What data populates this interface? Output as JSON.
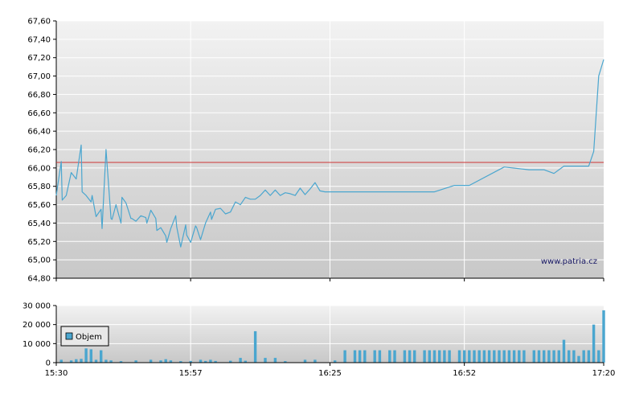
{
  "chart_data": [
    {
      "type": "line",
      "title": "",
      "xlabel": "",
      "ylabel": "",
      "x_tick_labels": [
        "15:30",
        "15:57",
        "16:25",
        "16:52",
        "17:20"
      ],
      "y_tick_labels": [
        "64,80",
        "65,00",
        "65,20",
        "65,40",
        "65,60",
        "65,80",
        "66,00",
        "66,20",
        "66,40",
        "66,60",
        "66,80",
        "67,00",
        "67,20",
        "67,40",
        "67,60"
      ],
      "ylim": [
        64.8,
        67.6
      ],
      "grid": true,
      "reference_line": 66.06,
      "colors": {
        "line": "#4aa6cf",
        "reference": "#cc3333"
      },
      "watermark": "www.patria.cz",
      "series": [
        {
          "x": [
            "15:30",
            "15:31",
            "15:31",
            "15:32",
            "15:33",
            "15:34",
            "15:35",
            "15:35",
            "15:36",
            "15:37",
            "15:37",
            "15:38",
            "15:39",
            "15:39",
            "15:40",
            "15:41",
            "15:41",
            "15:42",
            "15:43",
            "15:43",
            "15:44",
            "15:45",
            "15:45",
            "15:46",
            "15:47",
            "15:48",
            "15:48",
            "15:49",
            "15:50",
            "15:50",
            "15:51",
            "15:52",
            "15:52",
            "15:53",
            "15:54",
            "15:54",
            "15:55",
            "15:56",
            "15:56",
            "15:57",
            "15:58",
            "15:58",
            "15:59",
            "16:00",
            "16:01",
            "16:01",
            "16:02",
            "16:03",
            "16:04",
            "16:05",
            "16:06",
            "16:07",
            "16:08",
            "16:09",
            "16:10",
            "16:11",
            "16:12",
            "16:13",
            "16:14",
            "16:15",
            "16:16",
            "16:17",
            "16:18",
            "16:19",
            "16:20",
            "16:21",
            "16:22",
            "16:23",
            "16:24",
            "16:25",
            "16:27",
            "16:30",
            "16:33",
            "16:36",
            "16:40",
            "16:43",
            "16:46",
            "16:50",
            "16:53",
            "17:00",
            "17:05",
            "17:08",
            "17:10",
            "17:12",
            "17:15",
            "17:17",
            "17:18",
            "17:19",
            "17:20"
          ],
          "values": [
            65.7,
            66.07,
            65.65,
            65.7,
            65.95,
            65.88,
            66.25,
            65.74,
            65.7,
            65.63,
            65.7,
            65.47,
            65.55,
            65.34,
            66.2,
            65.45,
            65.44,
            65.6,
            65.4,
            65.68,
            65.62,
            65.45,
            65.45,
            65.42,
            65.48,
            65.46,
            65.4,
            65.54,
            65.45,
            65.32,
            65.35,
            65.26,
            65.19,
            65.34,
            65.48,
            65.36,
            65.14,
            65.38,
            65.27,
            65.19,
            65.37,
            65.35,
            65.22,
            65.4,
            65.52,
            65.44,
            65.55,
            65.56,
            65.5,
            65.52,
            65.63,
            65.6,
            65.68,
            65.66,
            65.66,
            65.7,
            65.76,
            65.7,
            65.76,
            65.7,
            65.73,
            65.72,
            65.7,
            65.78,
            65.71,
            65.77,
            65.84,
            65.75,
            65.74,
            65.74,
            65.74,
            65.74,
            65.74,
            65.74,
            65.74,
            65.74,
            65.74,
            65.81,
            65.81,
            66.01,
            65.98,
            65.98,
            65.94,
            66.02,
            66.02,
            66.02,
            66.18,
            67.0,
            67.18
          ]
        }
      ]
    },
    {
      "type": "bar",
      "title": "",
      "xlabel": "",
      "ylabel": "",
      "y_tick_labels": [
        "0",
        "10 000",
        "20 000",
        "30 000"
      ],
      "ylim": [
        0,
        30000
      ],
      "grid": true,
      "legend": {
        "label": "Objem",
        "placement": "top-left"
      },
      "colors": {
        "bar": "#4aa6cf"
      },
      "series": [
        {
          "x": [
            "15:31",
            "15:33",
            "15:34",
            "15:35",
            "15:36",
            "15:37",
            "15:38",
            "15:39",
            "15:40",
            "15:41",
            "15:43",
            "15:46",
            "15:49",
            "15:51",
            "15:52",
            "15:53",
            "15:55",
            "15:57",
            "15:59",
            "16:00",
            "16:01",
            "16:02",
            "16:05",
            "16:07",
            "16:08",
            "16:10",
            "16:12",
            "16:14",
            "16:16",
            "16:20",
            "16:22",
            "16:26",
            "16:28",
            "16:30",
            "16:31",
            "16:32",
            "16:34",
            "16:35",
            "16:37",
            "16:38",
            "16:40",
            "16:41",
            "16:42",
            "16:44",
            "16:45",
            "16:46",
            "16:47",
            "16:48",
            "16:49",
            "16:51",
            "16:52",
            "16:53",
            "16:54",
            "16:55",
            "16:56",
            "16:57",
            "16:58",
            "16:59",
            "17:00",
            "17:01",
            "17:02",
            "17:03",
            "17:04",
            "17:06",
            "17:07",
            "17:08",
            "17:09",
            "17:10",
            "17:11",
            "17:12",
            "17:13",
            "17:14",
            "17:15",
            "17:16",
            "17:17",
            "17:18",
            "17:19",
            "17:20"
          ],
          "values": [
            1500,
            1200,
            1800,
            2000,
            7500,
            7000,
            1500,
            6500,
            1500,
            1200,
            800,
            1200,
            1500,
            1200,
            1800,
            1200,
            800,
            900,
            1500,
            900,
            1500,
            900,
            1000,
            2500,
            1000,
            16500,
            2500,
            2500,
            800,
            1500,
            1500,
            1200,
            6500,
            6500,
            6500,
            6500,
            6500,
            6500,
            6500,
            6500,
            6500,
            6500,
            6500,
            6500,
            6500,
            6500,
            6500,
            6500,
            6500,
            6500,
            6500,
            6500,
            6500,
            6500,
            6500,
            6500,
            6500,
            6500,
            6500,
            6500,
            6500,
            6500,
            6500,
            6500,
            6500,
            6500,
            6500,
            6500,
            6500,
            12000,
            6500,
            6500,
            3500,
            6500,
            6500,
            20000,
            6500,
            27500
          ]
        }
      ]
    }
  ]
}
